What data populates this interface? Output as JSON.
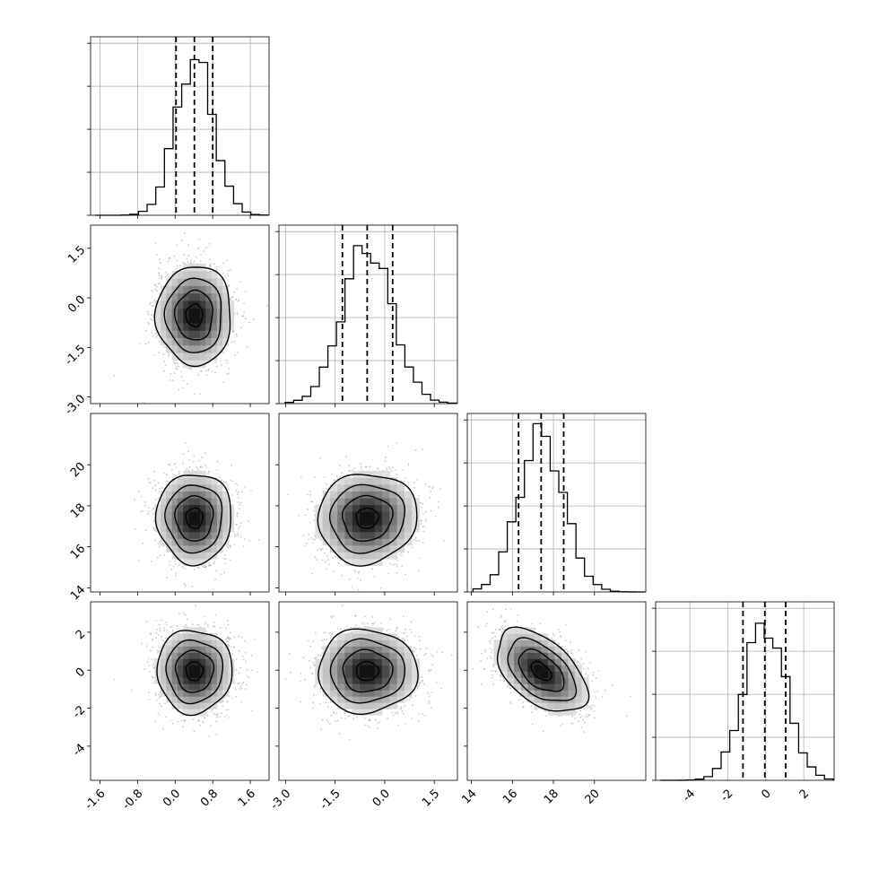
{
  "chart_data": {
    "type": "corner",
    "title": "",
    "parameters": [
      {
        "index": 0,
        "range": [
          -1.8,
          2.0
        ],
        "ticks": [
          "-1.6",
          "-0.8",
          "0.0",
          "0.8",
          "1.6"
        ],
        "tick_values": [
          -1.6,
          -0.8,
          0.0,
          0.8,
          1.6
        ],
        "quantiles": [
          0.02,
          0.41,
          0.8
        ],
        "mean": 0.41,
        "sd": 0.4
      },
      {
        "index": 1,
        "range": [
          -3.2,
          2.2
        ],
        "ticks": [
          "-3.0",
          "-1.5",
          "0.0",
          "1.5"
        ],
        "tick_values": [
          -3.0,
          -1.5,
          0.0,
          1.5
        ],
        "quantiles": [
          -1.28,
          -0.53,
          0.24
        ],
        "mean": -0.53,
        "sd": 0.75
      },
      {
        "index": 2,
        "range": [
          13.8,
          22.5
        ],
        "ticks": [
          "14",
          "16",
          "18",
          "20"
        ],
        "tick_values": [
          14,
          16,
          18,
          20
        ],
        "quantiles": [
          16.3,
          17.4,
          18.5
        ],
        "mean": 17.4,
        "sd": 1.1
      },
      {
        "index": 3,
        "range": [
          -5.8,
          3.6
        ],
        "ticks": [
          "-4",
          "-2",
          "0",
          "2"
        ],
        "tick_values": [
          -4,
          -2,
          0,
          2
        ],
        "quantiles": [
          -1.2,
          -0.05,
          1.05
        ],
        "mean": -0.05,
        "sd": 1.1
      }
    ],
    "correlations": [
      {
        "pair": [
          1,
          0
        ],
        "r": 0.0
      },
      {
        "pair": [
          2,
          0
        ],
        "r": 0.0
      },
      {
        "pair": [
          2,
          1
        ],
        "r": 0.05
      },
      {
        "pair": [
          3,
          0
        ],
        "r": 0.0
      },
      {
        "pair": [
          3,
          1
        ],
        "r": 0.0
      },
      {
        "pair": [
          3,
          2
        ],
        "r": -0.5
      }
    ],
    "histogram_bins": 20,
    "grid": true,
    "quantile_style": "dashed",
    "contour_levels": 4
  }
}
